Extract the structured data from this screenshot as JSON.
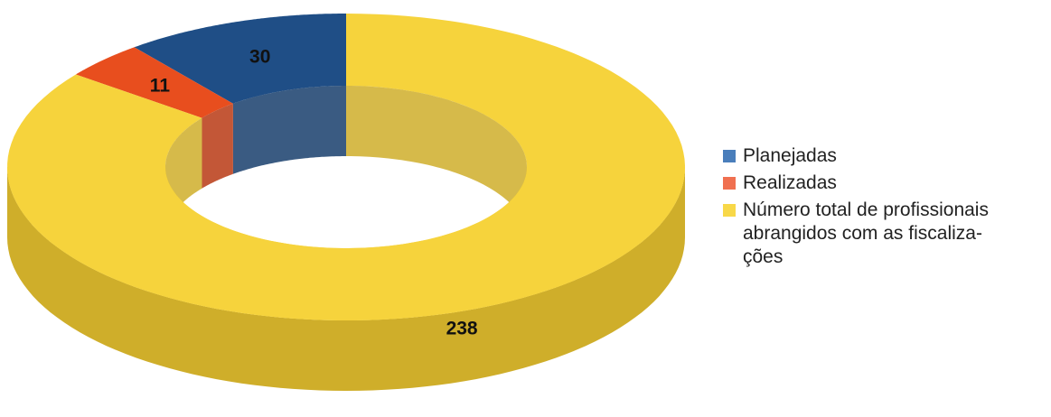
{
  "chart_data": {
    "type": "pie",
    "style": "3d-donut",
    "categories": [
      "Planejadas",
      "Realizadas",
      "Número total de profissionais abrangidos com as fiscalizações"
    ],
    "series": [
      {
        "values": [
          30,
          11,
          238
        ]
      }
    ],
    "data_labels": [
      "30",
      "11",
      "238"
    ],
    "legend": {
      "placement": "right",
      "items": [
        {
          "label": "Planejadas",
          "color": "#4A7EBB"
        },
        {
          "label": "Realizadas",
          "color": "#F07050"
        },
        {
          "label": "Número total de profissionais\nabrangidos com as fiscaliza-\nções",
          "color": "#F8D848"
        }
      ]
    },
    "colors": {
      "planejadas_top": "#1F4E86",
      "planejadas_side": "#173E6C",
      "realizadas_top": "#E84E1E",
      "realizadas_side": "#B83A14",
      "total_top": "#F6D33C",
      "total_side": "#CFAE2A"
    },
    "grid": false
  }
}
